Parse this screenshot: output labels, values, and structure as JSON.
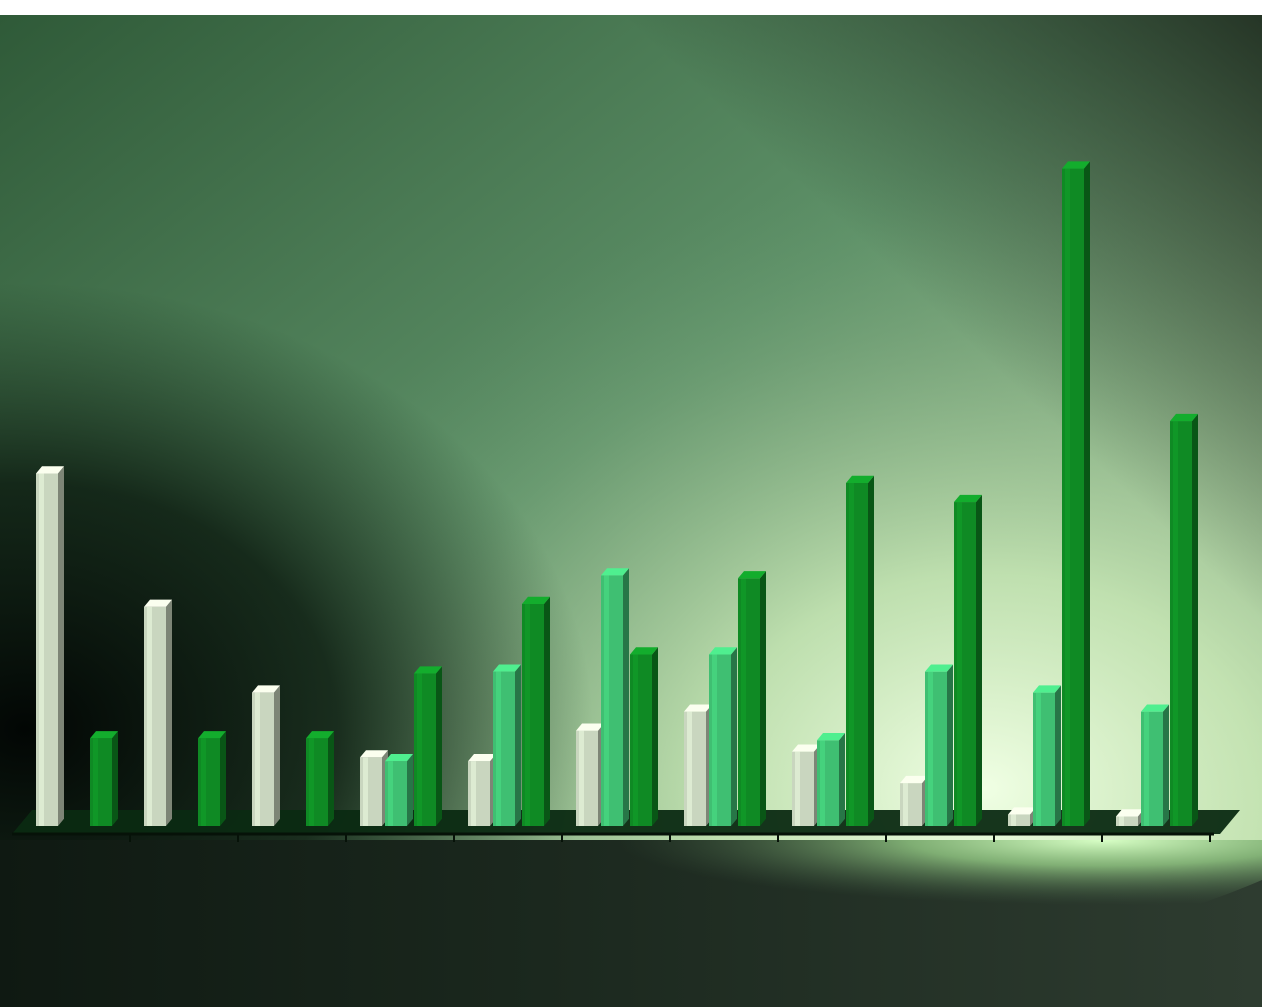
{
  "chart_data": {
    "type": "bar",
    "style": "3d-clustered",
    "categories": [
      "",
      "",
      "",
      "",
      "",
      "",
      "",
      "",
      "",
      "",
      ""
    ],
    "series": [
      {
        "color": "#c9d6bf",
        "values": [
          370,
          230,
          140,
          72,
          68,
          100,
          120,
          78,
          45,
          12,
          10
        ]
      },
      {
        "color": "#3fbf72",
        "values": [
          null,
          null,
          null,
          68,
          162,
          263,
          180,
          90,
          162,
          140,
          120
        ]
      },
      {
        "color": "#0f8a24",
        "values": [
          92,
          92,
          92,
          160,
          233,
          180,
          260,
          360,
          340,
          690,
          425
        ]
      }
    ],
    "ylim": [
      0,
      720
    ],
    "grid": false,
    "legend": "none",
    "background": {
      "top_color": "#5a8a5e",
      "glow_color": "#e6ffd2",
      "shadow_color": "#0c1a10"
    }
  }
}
